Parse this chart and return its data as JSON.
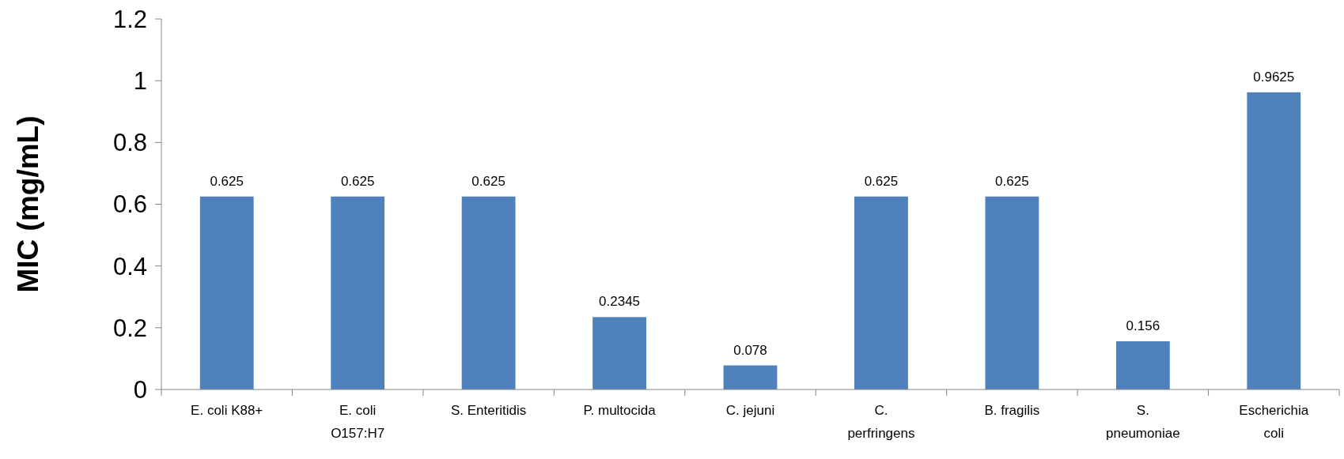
{
  "chart_data": {
    "type": "bar",
    "ylabel": "MIC (mg/mL)",
    "categories": [
      "E. coli K88+",
      "E. coli\nO157:H7",
      "S. Enteritidis",
      "P. multocida",
      "C. jejuni",
      "C.\nperfringens",
      "B. fragilis",
      "S.\npneumoniae",
      "Escherichia\ncoli"
    ],
    "values": [
      0.625,
      0.625,
      0.625,
      0.2345,
      0.078,
      0.625,
      0.625,
      0.156,
      0.9625
    ],
    "color": "#4f81bd",
    "ylim": [
      0,
      1.2
    ],
    "yticks": [
      0,
      {
        "value": 0.2,
        "label": "0.2"
      },
      {
        "value": 0.4,
        "label": "0.4"
      },
      {
        "value": 0.6,
        "label": "0.6"
      },
      {
        "value": 0.8,
        "label": "0.8"
      },
      1,
      {
        "value": 1.2,
        "label": "1.2"
      }
    ],
    "grid": false,
    "data_labels": true
  }
}
